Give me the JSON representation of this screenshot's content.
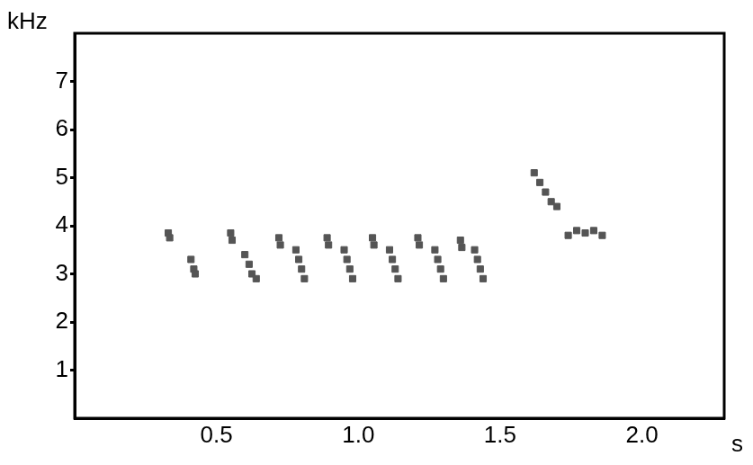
{
  "chart_data": {
    "type": "scatter",
    "ylabel": "kHz",
    "xlabel": "s",
    "x": [
      0.33,
      0.335,
      0.41,
      0.42,
      0.425,
      0.55,
      0.555,
      0.6,
      0.615,
      0.625,
      0.64,
      0.72,
      0.725,
      0.78,
      0.79,
      0.8,
      0.81,
      0.89,
      0.895,
      0.95,
      0.96,
      0.97,
      0.98,
      1.05,
      1.055,
      1.11,
      1.12,
      1.13,
      1.14,
      1.21,
      1.215,
      1.27,
      1.28,
      1.29,
      1.3,
      1.36,
      1.365,
      1.41,
      1.42,
      1.43,
      1.44,
      1.62,
      1.64,
      1.66,
      1.68,
      1.7,
      1.74,
      1.77,
      1.8,
      1.83,
      1.86
    ],
    "values": [
      3.85,
      3.75,
      3.3,
      3.1,
      3.0,
      3.85,
      3.7,
      3.4,
      3.2,
      3.0,
      2.9,
      3.75,
      3.6,
      3.5,
      3.3,
      3.1,
      2.9,
      3.75,
      3.6,
      3.5,
      3.3,
      3.1,
      2.9,
      3.75,
      3.6,
      3.5,
      3.3,
      3.1,
      2.9,
      3.75,
      3.6,
      3.5,
      3.3,
      3.1,
      2.9,
      3.7,
      3.55,
      3.5,
      3.3,
      3.1,
      2.9,
      5.1,
      4.9,
      4.7,
      4.5,
      4.4,
      3.8,
      3.9,
      3.85,
      3.9,
      3.8
    ],
    "color": "#555555",
    "marker": "square",
    "xlim": [
      0,
      2.29
    ],
    "xticks": [
      0.5,
      {
        "value": 1,
        "label": "1.0"
      },
      1.5,
      {
        "value": 2,
        "label": "2.0"
      }
    ],
    "ylim": [
      0,
      8
    ],
    "yticks": [
      1,
      2,
      3,
      4,
      5,
      6,
      7
    ],
    "grid": false
  }
}
